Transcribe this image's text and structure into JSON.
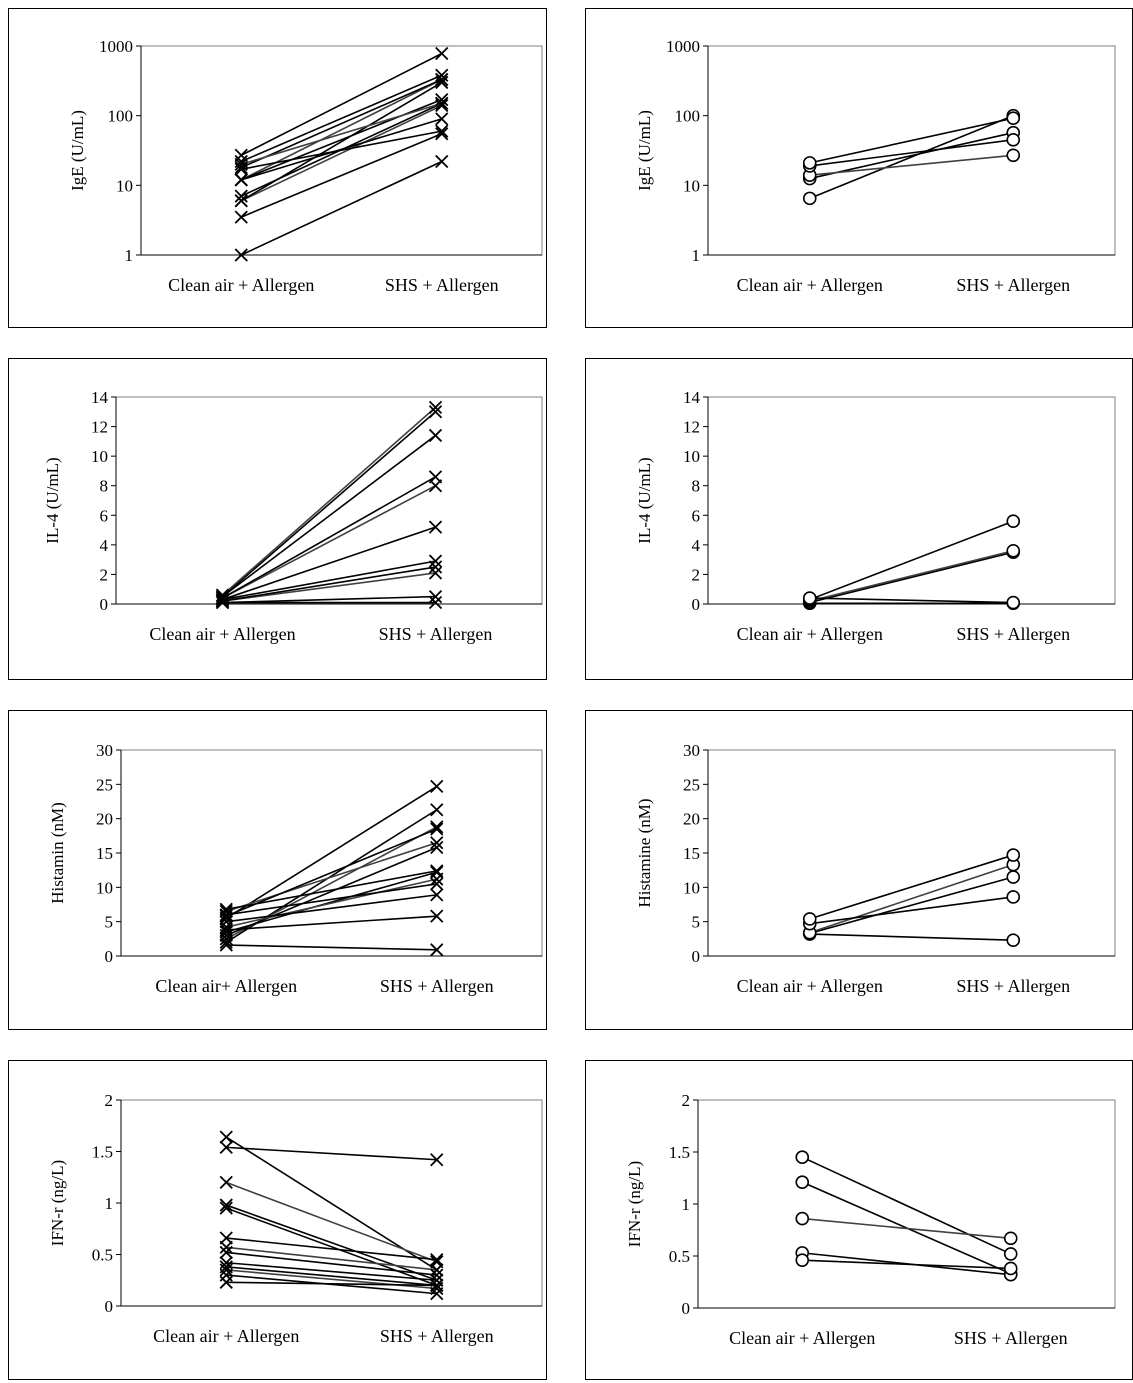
{
  "chart_data": [
    {
      "type": "line",
      "marker": "x",
      "scale": "log",
      "ylabel": "IgE (U/mL)",
      "categories": [
        "Clean air + Allergen",
        "SHS + Allergen"
      ],
      "ylim": [
        1,
        1000
      ],
      "yticks": [
        1,
        10,
        100,
        1000
      ],
      "yticklabels": [
        "1",
        "10",
        "100",
        "1000"
      ],
      "pairs": [
        [
          1,
          22
        ],
        [
          3.5,
          55
        ],
        [
          6,
          140
        ],
        [
          6,
          300
        ],
        [
          7,
          150
        ],
        [
          12,
          90
        ],
        [
          12,
          330
        ],
        [
          12,
          170
        ],
        [
          17,
          60
        ],
        [
          18,
          330
        ],
        [
          20,
          150
        ],
        [
          22,
          380
        ],
        [
          27,
          780
        ]
      ]
    },
    {
      "type": "line",
      "marker": "o",
      "scale": "log",
      "ylabel": "IgE (U/mL)",
      "categories": [
        "Clean air + Allergen",
        "SHS + Allergen"
      ],
      "ylim": [
        1,
        1000
      ],
      "yticks": [
        1,
        10,
        100,
        1000
      ],
      "yticklabels": [
        "1",
        "10",
        "100",
        "1000"
      ],
      "pairs": [
        [
          6.5,
          100
        ],
        [
          12.5,
          57
        ],
        [
          14,
          27
        ],
        [
          19,
          45
        ],
        [
          21,
          92
        ]
      ]
    },
    {
      "type": "line",
      "marker": "x",
      "scale": "linear",
      "ylabel": "IL-4 (U/mL)",
      "categories": [
        "Clean air + Allergen",
        "SHS + Allergen"
      ],
      "ylim": [
        0,
        14
      ],
      "yticks": [
        0,
        2,
        4,
        6,
        8,
        10,
        12,
        14
      ],
      "yticklabels": [
        "0",
        "2",
        "4",
        "6",
        "8",
        "10",
        "12",
        "14"
      ],
      "pairs": [
        [
          0.1,
          0.1
        ],
        [
          0.1,
          0.5
        ],
        [
          0.2,
          2.1
        ],
        [
          0.2,
          2.5
        ],
        [
          0.3,
          2.9
        ],
        [
          0.3,
          5.2
        ],
        [
          0.4,
          8.0
        ],
        [
          0.4,
          8.6
        ],
        [
          0.5,
          11.4
        ],
        [
          0.5,
          13.0
        ],
        [
          0.6,
          13.3
        ]
      ]
    },
    {
      "type": "line",
      "marker": "o",
      "scale": "linear",
      "ylabel": "IL-4 (U/mL)",
      "categories": [
        "Clean air + Allergen",
        "SHS + Allergen"
      ],
      "ylim": [
        0,
        14
      ],
      "yticks": [
        0,
        2,
        4,
        6,
        8,
        10,
        12,
        14
      ],
      "yticklabels": [
        "0",
        "2",
        "4",
        "6",
        "8",
        "10",
        "12",
        "14"
      ],
      "pairs": [
        [
          0.05,
          0.05
        ],
        [
          0.1,
          3.5
        ],
        [
          0.2,
          3.6
        ],
        [
          0.3,
          5.6
        ],
        [
          0.4,
          0.1
        ]
      ]
    },
    {
      "type": "line",
      "marker": "x",
      "scale": "linear",
      "ylabel": "Histamin (nM)",
      "categories": [
        "Clean air+ Allergen",
        "SHS + Allergen"
      ],
      "ylim": [
        0,
        30
      ],
      "yticks": [
        0,
        5,
        10,
        15,
        20,
        25,
        30
      ],
      "yticklabels": [
        "0",
        "5",
        "10",
        "15",
        "20",
        "25",
        "30"
      ],
      "pairs": [
        [
          1.6,
          0.9
        ],
        [
          2,
          21.3
        ],
        [
          2.5,
          18.8
        ],
        [
          3,
          15.8
        ],
        [
          3.5,
          12.2
        ],
        [
          3.8,
          5.8
        ],
        [
          4.2,
          11.2
        ],
        [
          5,
          8.9
        ],
        [
          5.5,
          24.7
        ],
        [
          6,
          10.5
        ],
        [
          6.5,
          16.5
        ],
        [
          6.8,
          12.4
        ],
        [
          5.8,
          18.5
        ]
      ]
    },
    {
      "type": "line",
      "marker": "o",
      "scale": "linear",
      "ylabel": "Histamine (nM)",
      "categories": [
        "Clean air + Allergen",
        "SHS + Allergen"
      ],
      "ylim": [
        0,
        30
      ],
      "yticks": [
        0,
        5,
        10,
        15,
        20,
        25,
        30
      ],
      "yticklabels": [
        "0",
        "5",
        "10",
        "15",
        "20",
        "25",
        "30"
      ],
      "pairs": [
        [
          3.2,
          2.3
        ],
        [
          3.3,
          11.5
        ],
        [
          3.4,
          13.3
        ],
        [
          4.7,
          8.6
        ],
        [
          5.4,
          14.7
        ]
      ]
    },
    {
      "type": "line",
      "marker": "x",
      "scale": "linear",
      "ylabel": "IFN-r (ng/L)",
      "categories": [
        "Clean air + Allergen",
        "SHS + Allergen"
      ],
      "ylim": [
        0,
        2
      ],
      "yticks": [
        0,
        0.5,
        1,
        1.5,
        2
      ],
      "yticklabels": [
        "0",
        "0.5",
        "1",
        "1.5",
        "2"
      ],
      "pairs": [
        [
          1.64,
          0.35
        ],
        [
          1.54,
          1.42
        ],
        [
          1.2,
          0.43
        ],
        [
          0.98,
          0.25
        ],
        [
          0.95,
          0.2
        ],
        [
          0.66,
          0.45
        ],
        [
          0.57,
          0.35
        ],
        [
          0.52,
          0.3
        ],
        [
          0.42,
          0.25
        ],
        [
          0.38,
          0.2
        ],
        [
          0.35,
          0.17
        ],
        [
          0.3,
          0.12
        ],
        [
          0.23,
          0.2
        ]
      ]
    },
    {
      "type": "line",
      "marker": "o",
      "scale": "linear",
      "ylabel": "IFN-r (ng/L)",
      "categories": [
        "Clean air + Allergen",
        "SHS + Allergen"
      ],
      "ylim": [
        0,
        2
      ],
      "yticks": [
        0,
        0.5,
        1,
        1.5,
        2
      ],
      "yticklabels": [
        "0",
        "0.5",
        "1",
        "1.5",
        "2"
      ],
      "pairs": [
        [
          1.45,
          0.52
        ],
        [
          1.21,
          0.33
        ],
        [
          0.86,
          0.67
        ],
        [
          0.53,
          0.32
        ],
        [
          0.46,
          0.38
        ]
      ]
    }
  ]
}
